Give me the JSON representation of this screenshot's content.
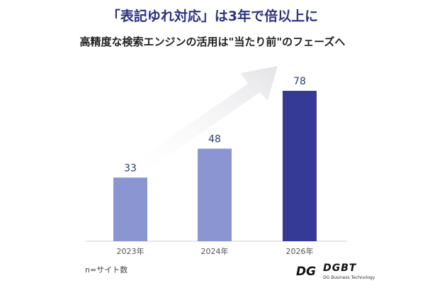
{
  "title": "「表記ゆれ対応」は3年で倍以上に",
  "subtitle": "高精度な検索エンジンの活用は\"当たり前\"のフェーズへ",
  "note": "n=サイト数",
  "logo": {
    "name": "DGBT",
    "tagline": "DG Business Technology"
  },
  "chart_data": {
    "type": "bar",
    "categories": [
      "2023年",
      "2024年",
      "2026年"
    ],
    "values": [
      33,
      48,
      78
    ],
    "data_labels": [
      "33",
      "48",
      "78"
    ],
    "colors": [
      "#8b95d1",
      "#8b95d1",
      "#343a96"
    ],
    "label_color": "#2c3e6b",
    "ylim": [
      0,
      78
    ],
    "grid": false,
    "annotation": "upward-trend-arrow"
  }
}
